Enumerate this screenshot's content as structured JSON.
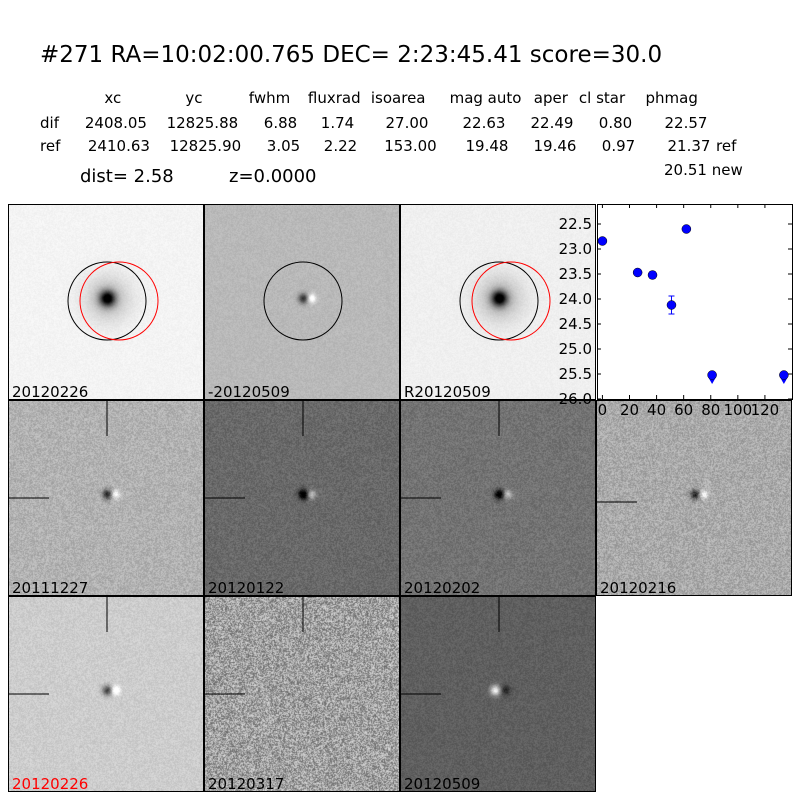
{
  "header": {
    "title": "#271   RA=10:02:00.765 DEC= 2:23:45.41      score=30.0",
    "columns": [
      "xc",
      "yc",
      "fwhm",
      "fluxrad",
      "isoarea",
      "mag auto",
      "aper",
      "cl star",
      "phmag"
    ],
    "rows": [
      {
        "label": "dif",
        "values": [
          "2408.05",
          "12825.88",
          "6.88",
          "1.74",
          "27.00",
          "22.63",
          "22.49",
          "0.80",
          "22.57"
        ],
        "suffix": ""
      },
      {
        "label": "ref",
        "values": [
          "2410.63",
          "12825.90",
          "3.05",
          "2.22",
          "153.00",
          "19.48",
          "19.46",
          "0.97",
          "21.37"
        ],
        "suffix": "ref"
      }
    ],
    "new_phmag": "20.51 new",
    "dist": "dist=  2.58",
    "z": "z=0.0000"
  },
  "panels": [
    {
      "label": "20120226",
      "label_color": "#000000"
    },
    {
      "label": "-20120509",
      "label_color": "#000000"
    },
    {
      "label": "R20120509",
      "label_color": "#000000"
    },
    {
      "label": "20111227",
      "label_color": "#000000"
    },
    {
      "label": "20120122",
      "label_color": "#000000"
    },
    {
      "label": "20120202",
      "label_color": "#000000"
    },
    {
      "label": "20120216",
      "label_color": "#000000"
    },
    {
      "label": "20120226",
      "label_color": "#ff0000"
    },
    {
      "label": "20120317",
      "label_color": "#000000"
    },
    {
      "label": "20120509",
      "label_color": "#000000"
    }
  ],
  "chart_data": {
    "type": "scatter",
    "title": "",
    "xlabel": "",
    "ylabel": "",
    "xlim": [
      -4,
      140
    ],
    "ylim": [
      26.0,
      22.1
    ],
    "y_inverted": true,
    "xticks": [
      "0",
      "20",
      "40",
      "60",
      "80",
      "100",
      "120"
    ],
    "yticks": [
      "22.5",
      "23.0",
      "23.5",
      "24.0",
      "24.5",
      "25.0",
      "25.5",
      "26.0"
    ],
    "color": "#0000ff",
    "points": [
      {
        "x": 0,
        "y": 22.84,
        "err": 0.03,
        "upper_limit": false
      },
      {
        "x": 26,
        "y": 23.47,
        "err": 0.06,
        "upper_limit": false
      },
      {
        "x": 37,
        "y": 23.52,
        "err": 0.07,
        "upper_limit": false
      },
      {
        "x": 51,
        "y": 24.12,
        "err": 0.18,
        "upper_limit": false
      },
      {
        "x": 62,
        "y": 22.6,
        "err": 0.03,
        "upper_limit": false
      },
      {
        "x": 81,
        "y": 25.52,
        "err": 0,
        "upper_limit": true
      },
      {
        "x": 134,
        "y": 25.52,
        "err": 0,
        "upper_limit": true
      }
    ]
  }
}
